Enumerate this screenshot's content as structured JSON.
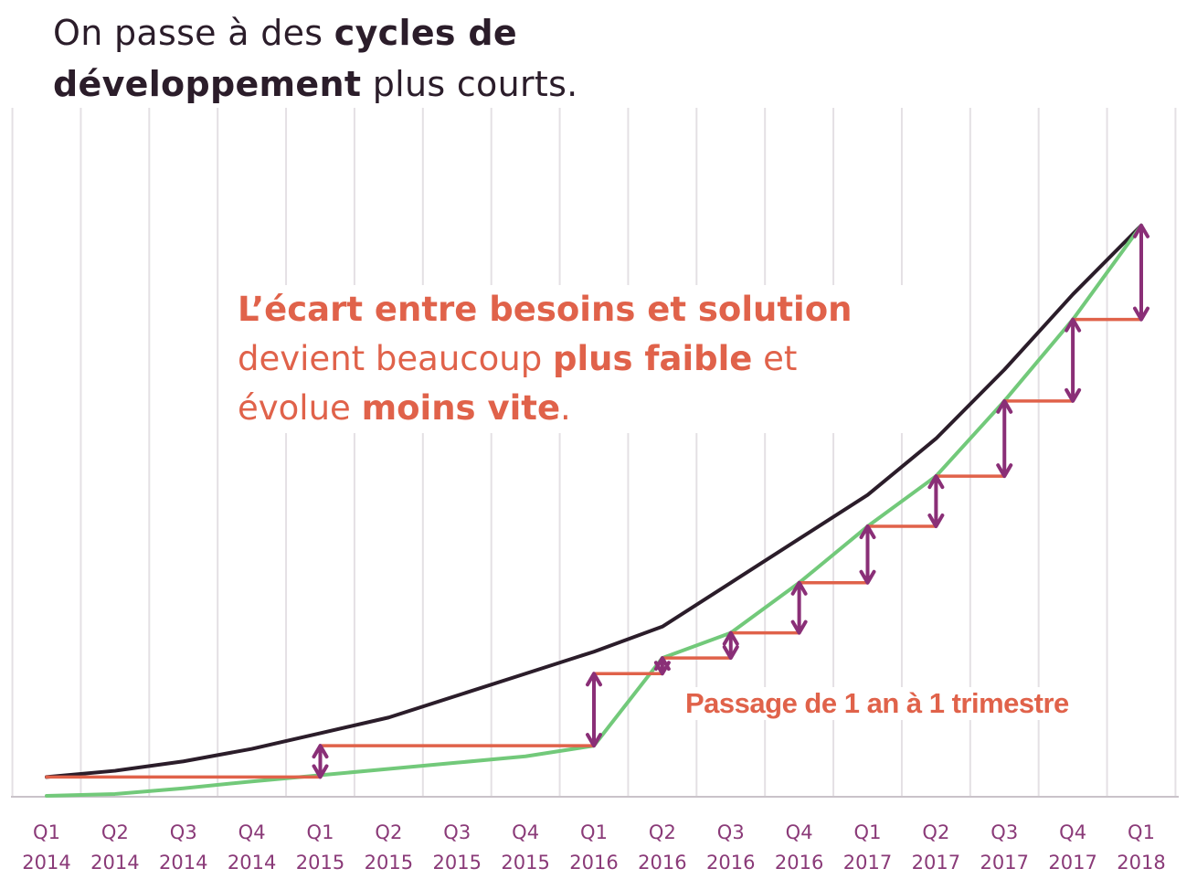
{
  "title": {
    "part1": "On passe à des ",
    "bold": "cycles de développement",
    "part2": " plus courts."
  },
  "annotation": {
    "line1": "L’écart entre besoins et solution",
    "line2a": "devient beaucoup ",
    "line2b": "plus faible",
    "line2c": " et",
    "line3a": "évolue ",
    "line3b": "moins vite",
    "line3c": "."
  },
  "arrow_label": "Passage de 1 an à 1 trimestre",
  "chart_data": {
    "type": "line",
    "categories": [
      [
        "Q1",
        "2014"
      ],
      [
        "Q2",
        "2014"
      ],
      [
        "Q3",
        "2014"
      ],
      [
        "Q4",
        "2014"
      ],
      [
        "Q1",
        "2015"
      ],
      [
        "Q2",
        "2015"
      ],
      [
        "Q3",
        "2015"
      ],
      [
        "Q4",
        "2015"
      ],
      [
        "Q1",
        "2016"
      ],
      [
        "Q2",
        "2016"
      ],
      [
        "Q3",
        "2016"
      ],
      [
        "Q4",
        "2016"
      ],
      [
        "Q1",
        "2017"
      ],
      [
        "Q2",
        "2017"
      ],
      [
        "Q3",
        "2017"
      ],
      [
        "Q4",
        "2017"
      ],
      [
        "Q1",
        "2018"
      ]
    ],
    "ylim": [
      0,
      100
    ],
    "grid": true,
    "series": [
      {
        "key": "besoins",
        "color": "#2b1d2a",
        "values": [
          3,
          4,
          5.5,
          7.5,
          10,
          12.5,
          16,
          19.5,
          23,
          27,
          34,
          41,
          48,
          57,
          68,
          80,
          91
        ]
      },
      {
        "key": "solution",
        "color": "#72c97a",
        "values": [
          0,
          0.3,
          1.2,
          2.3,
          3.3,
          4.3,
          5.3,
          6.3,
          8,
          22,
          26,
          34,
          43,
          51,
          63,
          76,
          91
        ]
      },
      {
        "key": "livraisons",
        "color": "#e0624a",
        "style": "step",
        "points": [
          [
            0,
            3
          ],
          [
            4,
            3
          ],
          [
            4,
            8
          ],
          [
            8,
            8
          ],
          [
            8,
            19.5
          ],
          [
            9,
            19.5
          ],
          [
            9,
            22
          ],
          [
            10,
            22
          ],
          [
            10,
            26
          ],
          [
            11,
            26
          ],
          [
            11,
            34
          ],
          [
            12,
            34
          ],
          [
            12,
            43
          ],
          [
            13,
            43
          ],
          [
            13,
            51
          ],
          [
            14,
            51
          ],
          [
            14,
            63
          ],
          [
            15,
            63
          ],
          [
            15,
            76
          ],
          [
            16,
            76
          ]
        ]
      }
    ],
    "gap_arrows": [
      {
        "x": 4,
        "from": 3,
        "to": 8
      },
      {
        "x": 8,
        "from": 8,
        "to": 19.5
      },
      {
        "x": 9,
        "from": 19.5,
        "to": 22
      },
      {
        "x": 10,
        "from": 22,
        "to": 26
      },
      {
        "x": 11,
        "from": 26,
        "to": 34
      },
      {
        "x": 12,
        "from": 34,
        "to": 43
      },
      {
        "x": 13,
        "from": 43,
        "to": 51
      },
      {
        "x": 14,
        "from": 51,
        "to": 63
      },
      {
        "x": 15,
        "from": 63,
        "to": 76
      },
      {
        "x": 16,
        "from": 76,
        "to": 91
      }
    ],
    "arrow_color": "#8a2f77"
  }
}
